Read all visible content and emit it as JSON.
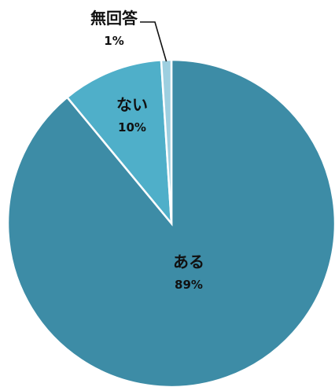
{
  "chart_data": {
    "type": "pie",
    "start": "top",
    "direction": "clockwise",
    "slices": [
      {
        "label": "ある",
        "value": 89,
        "display": "89%",
        "color": "#3d8ca6"
      },
      {
        "label": "ない",
        "value": 10,
        "display": "10%",
        "color": "#4fafc9"
      },
      {
        "label": "無回答",
        "value": 1,
        "display": "1%",
        "color": "#9dcfe0"
      }
    ]
  }
}
